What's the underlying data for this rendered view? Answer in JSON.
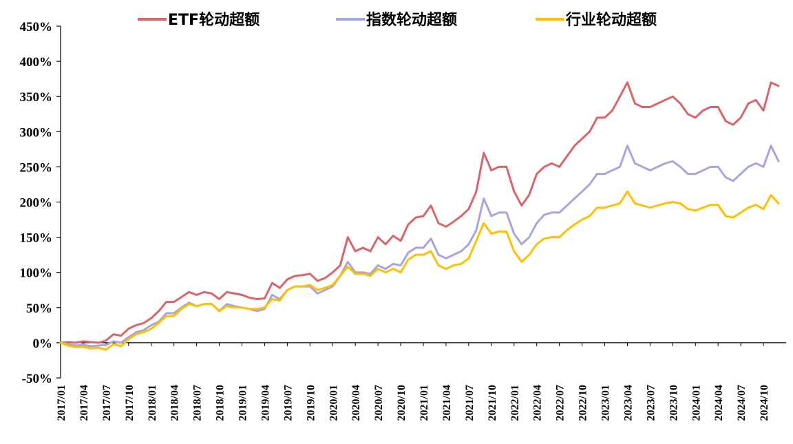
{
  "chart_data": {
    "type": "line",
    "title": "",
    "xlabel": "",
    "ylabel": "",
    "ylim": [
      -50,
      450
    ],
    "yticks": [
      -50,
      0,
      50,
      100,
      150,
      200,
      250,
      300,
      350,
      400,
      450
    ],
    "ytick_labels": [
      "-50%",
      "0%",
      "50%",
      "100%",
      "150%",
      "200%",
      "250%",
      "300%",
      "350%",
      "400%",
      "450%"
    ],
    "x_ticks": [
      "2017/01",
      "2017/04",
      "2017/07",
      "2017/10",
      "2018/01",
      "2018/04",
      "2018/07",
      "2018/10",
      "2019/01",
      "2019/04",
      "2019/07",
      "2019/10",
      "2020/01",
      "2020/04",
      "2020/07",
      "2020/10",
      "2021/01",
      "2021/04",
      "2021/07",
      "2021/10",
      "2022/01",
      "2022/04",
      "2022/07",
      "2022/10",
      "2023/01",
      "2023/04",
      "2023/07",
      "2023/10",
      "2024/01",
      "2024/04",
      "2024/07",
      "2024/10"
    ],
    "grid": false,
    "legend_position": "top",
    "x": [
      "2017/01",
      "2017/02",
      "2017/03",
      "2017/04",
      "2017/05",
      "2017/06",
      "2017/07",
      "2017/08",
      "2017/09",
      "2017/10",
      "2017/11",
      "2017/12",
      "2018/01",
      "2018/02",
      "2018/03",
      "2018/04",
      "2018/05",
      "2018/06",
      "2018/07",
      "2018/08",
      "2018/09",
      "2018/10",
      "2018/11",
      "2018/12",
      "2019/01",
      "2019/02",
      "2019/03",
      "2019/04",
      "2019/05",
      "2019/06",
      "2019/07",
      "2019/08",
      "2019/09",
      "2019/10",
      "2019/11",
      "2019/12",
      "2020/01",
      "2020/02",
      "2020/03",
      "2020/04",
      "2020/05",
      "2020/06",
      "2020/07",
      "2020/08",
      "2020/09",
      "2020/10",
      "2020/11",
      "2020/12",
      "2021/01",
      "2021/02",
      "2021/03",
      "2021/04",
      "2021/05",
      "2021/06",
      "2021/07",
      "2021/08",
      "2021/09",
      "2021/10",
      "2021/11",
      "2021/12",
      "2022/01",
      "2022/02",
      "2022/03",
      "2022/04",
      "2022/05",
      "2022/06",
      "2022/07",
      "2022/08",
      "2022/09",
      "2022/10",
      "2022/11",
      "2022/12",
      "2023/01",
      "2023/02",
      "2023/03",
      "2023/04",
      "2023/05",
      "2023/06",
      "2023/07",
      "2023/08",
      "2023/09",
      "2023/10",
      "2023/11",
      "2023/12",
      "2024/01",
      "2024/02",
      "2024/03",
      "2024/04",
      "2024/05",
      "2024/06",
      "2024/07",
      "2024/08",
      "2024/09",
      "2024/10",
      "2024/11",
      "2024/12"
    ],
    "series": [
      {
        "name": "ETF轮动超额",
        "color": "#D9646A",
        "values": [
          0,
          1,
          0,
          2,
          1,
          0,
          3,
          12,
          10,
          20,
          25,
          28,
          35,
          45,
          58,
          58,
          65,
          72,
          68,
          72,
          70,
          62,
          72,
          70,
          68,
          64,
          62,
          63,
          85,
          78,
          90,
          95,
          96,
          98,
          88,
          92,
          100,
          110,
          150,
          130,
          135,
          130,
          150,
          140,
          152,
          145,
          168,
          178,
          180,
          195,
          170,
          165,
          172,
          180,
          190,
          215,
          270,
          245,
          250,
          250,
          215,
          195,
          210,
          240,
          250,
          255,
          250,
          265,
          280,
          290,
          300,
          320,
          320,
          330,
          350,
          370,
          340,
          335,
          335,
          340,
          345,
          350,
          340,
          325,
          320,
          330,
          335,
          335,
          315,
          310,
          320,
          340,
          345,
          330,
          370,
          365
        ]
      },
      {
        "name": "指数轮动超额",
        "color": "#A6A6DF",
        "values": [
          0,
          -2,
          -4,
          -3,
          -5,
          -4,
          -3,
          2,
          0,
          8,
          15,
          18,
          25,
          30,
          42,
          42,
          50,
          57,
          52,
          55,
          55,
          45,
          55,
          52,
          50,
          48,
          45,
          48,
          68,
          62,
          75,
          80,
          80,
          80,
          70,
          75,
          80,
          95,
          115,
          100,
          100,
          98,
          110,
          105,
          112,
          110,
          128,
          135,
          135,
          148,
          125,
          120,
          125,
          130,
          140,
          160,
          205,
          180,
          185,
          185,
          155,
          140,
          150,
          170,
          182,
          185,
          185,
          195,
          205,
          215,
          225,
          240,
          240,
          245,
          250,
          280,
          255,
          250,
          245,
          250,
          255,
          258,
          250,
          240,
          240,
          245,
          250,
          250,
          235,
          230,
          240,
          250,
          255,
          250,
          280,
          258
        ]
      },
      {
        "name": "行业轮动超额",
        "color": "#FFC000",
        "values": [
          0,
          -4,
          -6,
          -6,
          -8,
          -7,
          -10,
          -2,
          -5,
          5,
          12,
          15,
          20,
          28,
          38,
          38,
          48,
          55,
          52,
          55,
          55,
          45,
          52,
          50,
          50,
          48,
          48,
          50,
          62,
          60,
          75,
          80,
          80,
          82,
          75,
          78,
          82,
          95,
          108,
          98,
          98,
          95,
          105,
          100,
          105,
          100,
          118,
          125,
          125,
          130,
          110,
          105,
          110,
          112,
          120,
          145,
          170,
          155,
          158,
          158,
          130,
          115,
          125,
          140,
          148,
          150,
          150,
          160,
          168,
          175,
          180,
          192,
          192,
          195,
          198,
          215,
          198,
          195,
          192,
          195,
          198,
          200,
          198,
          190,
          188,
          192,
          196,
          196,
          180,
          178,
          185,
          192,
          196,
          190,
          210,
          198
        ]
      }
    ]
  }
}
